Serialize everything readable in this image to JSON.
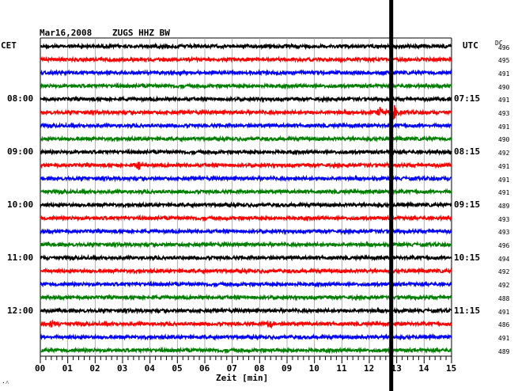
{
  "header": {
    "date": "Mar16,2008",
    "station": "ZUGS HHZ BW"
  },
  "left_tz": "CET",
  "right_tz": "UTC",
  "dc_label": "DC",
  "xlabel": "Zeit [min]",
  "corner_mark": "·˄",
  "left_times": [
    "08:00",
    "09:00",
    "10:00",
    "11:00",
    "12:00"
  ],
  "right_times": [
    "07:15",
    "08:15",
    "09:15",
    "10:15",
    "11:15"
  ],
  "colors": {
    "trace_cycle": [
      "#000000",
      "#ff0000",
      "#0000ff",
      "#007f00"
    ],
    "grid": "#a0a0a0",
    "marker": "#000000"
  },
  "chart_data": {
    "type": "line",
    "title": "Mar16,2008  ZUGS HHZ BW",
    "xlabel": "Zeit [min]",
    "x_ticks": [
      "00",
      "01",
      "02",
      "03",
      "04",
      "05",
      "06",
      "07",
      "08",
      "09",
      "10",
      "11",
      "12",
      "13",
      "14",
      "15"
    ],
    "xlim": [
      0,
      15
    ],
    "grid": true,
    "trace_count": 24,
    "dc_offsets": [
      496,
      495,
      491,
      490,
      491,
      493,
      491,
      490,
      492,
      491,
      491,
      491,
      489,
      493,
      493,
      496,
      494,
      492,
      492,
      488,
      491,
      486,
      491,
      489
    ],
    "marker_minute": 12.8,
    "events": [
      {
        "trace": 5,
        "minute": 12.9,
        "amplitude": "large"
      },
      {
        "trace": 5,
        "minute": 12.4,
        "amplitude": "medium"
      },
      {
        "trace": 9,
        "minute": 12.8,
        "amplitude": "small"
      },
      {
        "trace": 9,
        "minute": 3.6,
        "amplitude": "small"
      },
      {
        "trace": 21,
        "minute": 8.4,
        "amplitude": "small"
      },
      {
        "trace": 21,
        "minute": 0.4,
        "amplitude": "small"
      }
    ]
  }
}
